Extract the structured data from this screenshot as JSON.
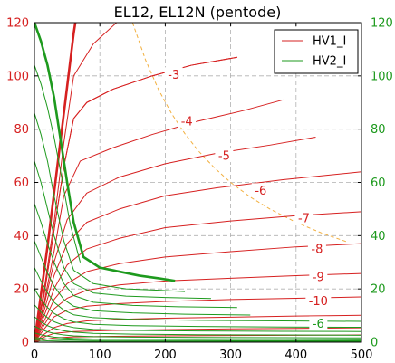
{
  "chart_data": {
    "type": "line",
    "title": "EL12, EL12N (pentode)",
    "xlabel": "",
    "ylabel": "",
    "xlim": [
      0,
      500
    ],
    "ylim": [
      0,
      120
    ],
    "y2lim": [
      0,
      120
    ],
    "grid": true,
    "x_ticks": [
      "0",
      "100",
      "200",
      "300",
      "400",
      "500"
    ],
    "y_ticks": [
      "0",
      "20",
      "40",
      "60",
      "80",
      "100",
      "120"
    ],
    "y2_ticks": [
      "0",
      "20",
      "40",
      "60",
      "80",
      "100",
      "120"
    ],
    "legend": {
      "placement": "top-right",
      "entries": [
        {
          "label": "HV1_I",
          "color": "#d62020"
        },
        {
          "label": "HV2_I",
          "color": "#1e9a1e"
        }
      ]
    },
    "colors": {
      "hv1": "#d62020",
      "hv2": "#1e9a1e",
      "axis_left": "#d62020",
      "axis_right": "#1e9a1e",
      "pmax": "#f2b040",
      "grid": "#b0b0b0"
    },
    "series": [
      {
        "name": "HV1_I",
        "grid_volts": "0",
        "role": "anode",
        "emphasis": true,
        "x": [
          0,
          10,
          20,
          30,
          40,
          50,
          60,
          70
        ],
        "y": [
          0,
          18,
          36,
          56,
          76,
          96,
          116,
          132
        ]
      },
      {
        "name": "HV1_I",
        "grid_volts": "-1",
        "role": "anode",
        "x": [
          0,
          15,
          30,
          45,
          60,
          90,
          130,
          170
        ],
        "y": [
          0,
          20,
          45,
          75,
          100,
          112,
          121,
          126
        ]
      },
      {
        "name": "HV1_I",
        "grid_volts": "-2",
        "role": "anode",
        "x": [
          0,
          15,
          30,
          45,
          60,
          80,
          120,
          180,
          240,
          310
        ],
        "y": [
          0,
          18,
          42,
          66,
          84,
          90,
          95,
          100,
          104,
          107
        ]
      },
      {
        "name": "HV1_I",
        "grid_volts": "-3",
        "role": "anode",
        "label": "-3",
        "x": [
          0,
          15,
          30,
          45,
          60,
          80,
          120,
          180,
          240,
          310
        ],
        "y": [
          0,
          18,
          42,
          66,
          84,
          90,
          95,
          100,
          104,
          107
        ]
      },
      {
        "name": "HV1_I",
        "grid_volts": "-4",
        "role": "anode",
        "label": "-4",
        "x": [
          0,
          15,
          30,
          45,
          70,
          120,
          180,
          250,
          320,
          380
        ],
        "y": [
          0,
          15,
          34,
          55,
          68,
          73,
          78,
          83,
          87,
          91
        ]
      },
      {
        "name": "HV1_I",
        "grid_volts": "-5",
        "role": "anode",
        "label": "-5",
        "x": [
          0,
          15,
          30,
          50,
          80,
          130,
          200,
          280,
          360,
          430
        ],
        "y": [
          0,
          14,
          30,
          46,
          56,
          62,
          67,
          71,
          74,
          77
        ]
      },
      {
        "name": "HV1_I",
        "grid_volts": "-6",
        "role": "anode",
        "label": "-6",
        "x": [
          0,
          15,
          30,
          50,
          80,
          130,
          200,
          280,
          380,
          500
        ],
        "y": [
          0,
          12,
          25,
          37,
          45,
          50,
          55,
          58,
          61,
          64
        ]
      },
      {
        "name": "HV1_I",
        "grid_volts": "-7",
        "role": "anode",
        "label": "-7",
        "x": [
          0,
          15,
          30,
          50,
          80,
          130,
          200,
          300,
          400,
          500
        ],
        "y": [
          0,
          10,
          20,
          29,
          35,
          39,
          43,
          45.5,
          47.5,
          49
        ]
      },
      {
        "name": "HV1_I",
        "grid_volts": "-8",
        "role": "anode",
        "label": "-8",
        "x": [
          0,
          15,
          30,
          50,
          80,
          130,
          200,
          300,
          400,
          500
        ],
        "y": [
          0,
          8,
          16,
          22,
          26.5,
          29.5,
          32,
          34,
          35.8,
          37
        ]
      },
      {
        "name": "HV1_I",
        "grid_volts": "-9",
        "role": "anode",
        "label": "-9",
        "x": [
          0,
          15,
          30,
          50,
          80,
          130,
          200,
          300,
          400,
          500
        ],
        "y": [
          0,
          6.5,
          12.5,
          16.5,
          19.5,
          21.5,
          23,
          24,
          25,
          25.8
        ]
      },
      {
        "name": "HV1_I",
        "grid_volts": "-10",
        "role": "anode",
        "label": "-10",
        "x": [
          0,
          15,
          30,
          50,
          80,
          130,
          200,
          300,
          400,
          500
        ],
        "y": [
          0,
          5,
          9.5,
          12,
          13.5,
          14.5,
          15.3,
          16,
          16.5,
          17
        ]
      },
      {
        "name": "HV1_I",
        "grid_volts": "-11",
        "role": "anode",
        "x": [
          0,
          15,
          30,
          50,
          80,
          130,
          200,
          300,
          400,
          500
        ],
        "y": [
          0,
          3,
          5.5,
          7,
          8,
          8.6,
          9,
          9.4,
          9.8,
          10.1
        ]
      },
      {
        "name": "HV1_I",
        "grid_volts": "-12",
        "role": "anode",
        "x": [
          0,
          15,
          30,
          60,
          120,
          200,
          300,
          400,
          500
        ],
        "y": [
          0,
          2,
          3.3,
          4,
          4.4,
          4.7,
          5,
          5.2,
          5.4
        ]
      },
      {
        "name": "HV1_I",
        "grid_volts": "-13",
        "role": "anode",
        "x": [
          0,
          15,
          30,
          60,
          120,
          200,
          300,
          400,
          500
        ],
        "y": [
          0,
          1,
          1.6,
          2,
          2.2,
          2.4,
          2.5,
          2.6,
          2.7
        ]
      },
      {
        "name": "HV2_I",
        "grid_volts": "0",
        "role": "screen",
        "emphasis": true,
        "x": [
          0,
          10,
          20,
          30,
          40,
          50,
          60,
          75,
          100,
          130,
          160,
          190,
          215
        ],
        "y": [
          120,
          113,
          104,
          92,
          76,
          60,
          45,
          32,
          28,
          26.5,
          25,
          24,
          23
        ]
      },
      {
        "name": "HV2_I",
        "grid_volts": "-1",
        "role": "screen",
        "x": [
          0,
          10,
          20,
          30,
          40,
          55,
          70
        ],
        "y": [
          104,
          97,
          88,
          77,
          64,
          44,
          30
        ]
      },
      {
        "name": "HV2_I",
        "grid_volts": "-2",
        "role": "screen",
        "x": [
          0,
          10,
          20,
          30,
          45,
          60,
          90,
          140,
          190,
          230
        ],
        "y": [
          86,
          78,
          68,
          55,
          38,
          27,
          22,
          20,
          19.5,
          19
        ]
      },
      {
        "name": "HV2_I",
        "grid_volts": "-3",
        "role": "screen",
        "x": [
          0,
          10,
          20,
          30,
          45,
          60,
          90,
          140,
          200,
          270
        ],
        "y": [
          68,
          60,
          50,
          40,
          28,
          22,
          18.5,
          17.3,
          16.8,
          16.4
        ]
      },
      {
        "name": "HV2_I",
        "grid_volts": "-4",
        "role": "screen",
        "x": [
          0,
          10,
          20,
          30,
          45,
          60,
          90,
          150,
          220,
          310
        ],
        "y": [
          52,
          45,
          37,
          30,
          22,
          17.5,
          15,
          13.8,
          13.3,
          13
        ]
      },
      {
        "name": "HV2_I",
        "grid_volts": "-5",
        "role": "screen",
        "x": [
          0,
          10,
          20,
          30,
          45,
          60,
          90,
          150,
          230,
          330
        ],
        "y": [
          38,
          32,
          26,
          21,
          16,
          13.5,
          11.8,
          11,
          10.5,
          10.2
        ]
      },
      {
        "name": "HV2_I",
        "grid_volts": "-6",
        "role": "screen",
        "label": "-6",
        "x": [
          0,
          10,
          20,
          30,
          45,
          60,
          90,
          150,
          250,
          380,
          500
        ],
        "y": [
          28,
          23,
          18.5,
          15,
          12,
          10.3,
          9.2,
          8.6,
          8.2,
          8,
          7.8
        ]
      },
      {
        "name": "HV2_I",
        "grid_volts": "-7",
        "role": "screen",
        "x": [
          0,
          10,
          20,
          30,
          45,
          60,
          90,
          150,
          250,
          380,
          500
        ],
        "y": [
          20,
          16,
          13,
          10.8,
          8.8,
          7.6,
          6.7,
          6.2,
          5.9,
          5.7,
          5.6
        ]
      },
      {
        "name": "HV2_I",
        "grid_volts": "-8",
        "role": "screen",
        "x": [
          0,
          10,
          20,
          30,
          45,
          60,
          90,
          150,
          250,
          380,
          500
        ],
        "y": [
          14,
          11.3,
          9.2,
          7.7,
          6.3,
          5.5,
          4.8,
          4.4,
          4.2,
          4.1,
          4
        ]
      },
      {
        "name": "HV2_I",
        "grid_volts": "-9",
        "role": "screen",
        "x": [
          0,
          10,
          20,
          30,
          45,
          60,
          90,
          150,
          250,
          380,
          500
        ],
        "y": [
          9.5,
          7.6,
          6.2,
          5.2,
          4.3,
          3.8,
          3.3,
          3,
          2.8,
          2.7,
          2.6
        ]
      },
      {
        "name": "HV2_I",
        "grid_volts": "-10",
        "role": "screen",
        "x": [
          0,
          10,
          20,
          30,
          45,
          60,
          90,
          150,
          250,
          380,
          500
        ],
        "y": [
          6,
          4.8,
          3.9,
          3.3,
          2.7,
          2.4,
          2.1,
          1.9,
          1.8,
          1.7,
          1.6
        ]
      },
      {
        "name": "HV2_I",
        "grid_volts": "-11",
        "role": "screen",
        "x": [
          0,
          10,
          20,
          30,
          45,
          60,
          90,
          150,
          250,
          380,
          500
        ],
        "y": [
          3.5,
          2.8,
          2.3,
          1.9,
          1.6,
          1.4,
          1.2,
          1.1,
          1,
          1,
          0.9
        ]
      },
      {
        "name": "HV2_I",
        "grid_volts": "-12",
        "role": "screen",
        "x": [
          0,
          20,
          45,
          90,
          150,
          250,
          380,
          500
        ],
        "y": [
          1.8,
          1.2,
          0.9,
          0.7,
          0.6,
          0.55,
          0.5,
          0.5
        ]
      },
      {
        "name": "HV2_I",
        "grid_volts": "-13",
        "role": "screen",
        "x": [
          0,
          20,
          45,
          90,
          150,
          250,
          380,
          500
        ],
        "y": [
          0.8,
          0.5,
          0.35,
          0.3,
          0.25,
          0.22,
          0.2,
          0.2
        ]
      }
    ],
    "annotations": [
      {
        "text": "-3",
        "color": "hv1",
        "x": 213,
        "y": 100.5
      },
      {
        "text": "-4",
        "color": "hv1",
        "x": 233,
        "y": 83
      },
      {
        "text": "-5",
        "color": "hv1",
        "x": 290,
        "y": 70
      },
      {
        "text": "-6",
        "color": "hv1",
        "x": 346,
        "y": 57
      },
      {
        "text": "-7",
        "color": "hv1",
        "x": 412,
        "y": 46.5
      },
      {
        "text": "-8",
        "color": "hv1",
        "x": 432,
        "y": 35
      },
      {
        "text": "-9",
        "color": "hv1",
        "x": 434,
        "y": 24.5
      },
      {
        "text": "-10",
        "color": "hv1",
        "x": 434,
        "y": 15.5
      },
      {
        "text": "-6",
        "color": "hv2",
        "x": 434,
        "y": 7
      }
    ],
    "pmax_curve": {
      "style": "dashed",
      "x": [
        150,
        170,
        190,
        210,
        230,
        250,
        275,
        300,
        330,
        360,
        400,
        440,
        480
      ],
      "y": [
        120,
        105.9,
        94.7,
        85.7,
        78.3,
        72,
        65.5,
        60,
        54.5,
        50,
        45,
        40.9,
        37.5
      ]
    }
  }
}
